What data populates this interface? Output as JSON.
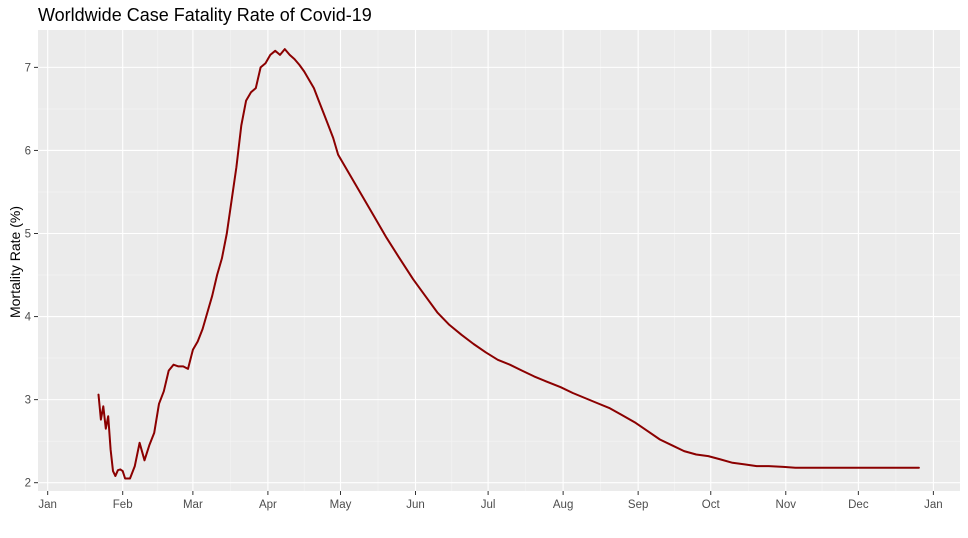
{
  "chart_data": {
    "type": "line",
    "title": "Worldwide Case Fatality Rate of Covid-19",
    "xlabel": "",
    "ylabel": "Mortality Rate (%)",
    "x_ticks": [
      "Jan",
      "Feb",
      "Mar",
      "Apr",
      "May",
      "Jun",
      "Jul",
      "Aug",
      "Sep",
      "Oct",
      "Nov",
      "Dec",
      "Jan"
    ],
    "x_tick_dates": [
      "2020-01-01",
      "2020-02-01",
      "2020-03-01",
      "2020-04-01",
      "2020-05-01",
      "2020-06-01",
      "2020-07-01",
      "2020-08-01",
      "2020-09-01",
      "2020-10-01",
      "2020-11-01",
      "2020-12-01",
      "2021-01-01"
    ],
    "y_ticks": [
      2,
      3,
      4,
      5,
      6,
      7
    ],
    "xlim": [
      "2019-12-28",
      "2021-01-12"
    ],
    "ylim": [
      1.9,
      7.45
    ],
    "grid": true,
    "background": "#ebebeb",
    "line_color": "#8b0000",
    "series": [
      {
        "x": [
          "2020-01-22",
          "2020-01-23",
          "2020-01-24",
          "2020-01-25",
          "2020-01-26",
          "2020-01-27",
          "2020-01-28",
          "2020-01-29",
          "2020-01-30",
          "2020-01-31",
          "2020-02-01",
          "2020-02-02",
          "2020-02-04",
          "2020-02-06",
          "2020-02-08",
          "2020-02-10",
          "2020-02-12",
          "2020-02-14",
          "2020-02-16",
          "2020-02-18",
          "2020-02-20",
          "2020-02-22",
          "2020-02-24",
          "2020-02-26",
          "2020-02-28",
          "2020-03-01",
          "2020-03-03",
          "2020-03-05",
          "2020-03-07",
          "2020-03-09",
          "2020-03-11",
          "2020-03-13",
          "2020-03-15",
          "2020-03-17",
          "2020-03-19",
          "2020-03-21",
          "2020-03-23",
          "2020-03-25",
          "2020-03-27",
          "2020-03-29",
          "2020-03-31",
          "2020-04-02",
          "2020-04-04",
          "2020-04-06",
          "2020-04-08",
          "2020-04-10",
          "2020-04-12",
          "2020-04-14",
          "2020-04-16",
          "2020-04-18",
          "2020-04-20",
          "2020-04-22",
          "2020-04-24",
          "2020-04-26",
          "2020-04-28",
          "2020-04-30",
          "2020-05-05",
          "2020-05-10",
          "2020-05-15",
          "2020-05-20",
          "2020-05-25",
          "2020-05-31",
          "2020-06-05",
          "2020-06-10",
          "2020-06-15",
          "2020-06-20",
          "2020-06-25",
          "2020-06-30",
          "2020-07-05",
          "2020-07-10",
          "2020-07-15",
          "2020-07-20",
          "2020-07-25",
          "2020-07-31",
          "2020-08-05",
          "2020-08-10",
          "2020-08-15",
          "2020-08-20",
          "2020-08-25",
          "2020-08-31",
          "2020-09-05",
          "2020-09-10",
          "2020-09-15",
          "2020-09-20",
          "2020-09-25",
          "2020-09-30",
          "2020-10-05",
          "2020-10-10",
          "2020-10-15",
          "2020-10-20",
          "2020-10-25",
          "2020-10-31",
          "2020-11-05",
          "2020-11-10",
          "2020-11-15",
          "2020-11-20",
          "2020-11-25",
          "2020-11-30",
          "2020-12-05",
          "2020-12-10",
          "2020-12-15",
          "2020-12-20",
          "2020-12-26"
        ],
        "values": [
          3.06,
          2.76,
          2.92,
          2.65,
          2.8,
          2.4,
          2.14,
          2.08,
          2.15,
          2.16,
          2.14,
          2.05,
          2.05,
          2.2,
          2.48,
          2.27,
          2.45,
          2.6,
          2.95,
          3.1,
          3.35,
          3.42,
          3.4,
          3.4,
          3.37,
          3.6,
          3.7,
          3.85,
          4.05,
          4.25,
          4.5,
          4.7,
          5.0,
          5.4,
          5.8,
          6.3,
          6.6,
          6.7,
          6.75,
          7.0,
          7.05,
          7.15,
          7.2,
          7.15,
          7.22,
          7.15,
          7.1,
          7.03,
          6.95,
          6.85,
          6.75,
          6.6,
          6.45,
          6.3,
          6.15,
          5.95,
          5.7,
          5.45,
          5.2,
          4.95,
          4.72,
          4.45,
          4.25,
          4.05,
          3.9,
          3.78,
          3.67,
          3.57,
          3.48,
          3.42,
          3.35,
          3.28,
          3.22,
          3.15,
          3.08,
          3.02,
          2.96,
          2.9,
          2.82,
          2.72,
          2.62,
          2.52,
          2.45,
          2.38,
          2.34,
          2.32,
          2.28,
          2.24,
          2.22,
          2.2,
          2.2,
          2.19,
          2.18,
          2.18,
          2.18,
          2.18,
          2.18,
          2.18,
          2.18,
          2.18,
          2.18,
          2.18,
          2.18
        ]
      }
    ]
  }
}
